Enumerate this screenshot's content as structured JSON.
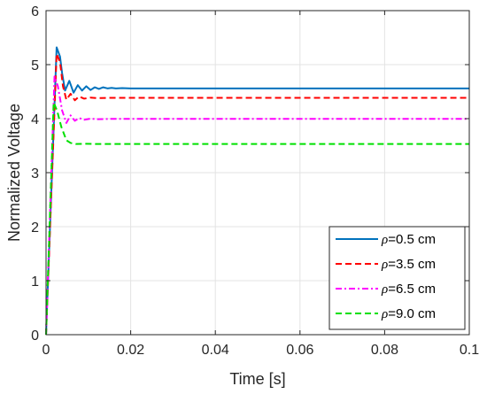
{
  "chart_data": {
    "type": "line",
    "title": "",
    "xlabel": "Time [s]",
    "ylabel": "Normalized Voltage",
    "xlim": [
      0,
      0.1
    ],
    "ylim": [
      0,
      6
    ],
    "xticks": [
      "0",
      "0.02",
      "0.04",
      "0.06",
      "0.08",
      "0.1"
    ],
    "yticks": [
      "0",
      "1",
      "2",
      "3",
      "4",
      "5",
      "6"
    ],
    "grid": true,
    "legend_position": "bottom-right",
    "series": [
      {
        "name": "ρ=0.5 cm",
        "legend_symbol": "ρ",
        "legend_rest": "=0.5 cm",
        "color": "#0072BD",
        "style": "solid",
        "x": [
          0,
          0.0025,
          0.0033,
          0.0038,
          0.0045,
          0.0055,
          0.0065,
          0.0075,
          0.0085,
          0.0095,
          0.0105,
          0.0115,
          0.0125,
          0.0135,
          0.0145,
          0.0155,
          0.0165,
          0.018,
          0.02,
          0.03,
          0.05,
          0.07,
          0.1
        ],
        "y": [
          0,
          5.32,
          5.15,
          4.84,
          4.52,
          4.7,
          4.48,
          4.62,
          4.52,
          4.6,
          4.53,
          4.58,
          4.55,
          4.58,
          4.56,
          4.57,
          4.56,
          4.565,
          4.56,
          4.56,
          4.56,
          4.56,
          4.56
        ]
      },
      {
        "name": "ρ=3.5 cm",
        "legend_symbol": "ρ",
        "legend_rest": "=3.5 cm",
        "color": "#FF0000",
        "style": "dashed",
        "x": [
          0,
          0.0025,
          0.0033,
          0.004,
          0.0048,
          0.0058,
          0.0068,
          0.0078,
          0.009,
          0.0105,
          0.012,
          0.015,
          0.03,
          0.05,
          0.1
        ],
        "y": [
          0,
          5.2,
          5.05,
          4.6,
          4.35,
          4.46,
          4.34,
          4.41,
          4.37,
          4.39,
          4.38,
          4.385,
          4.385,
          4.385,
          4.385
        ]
      },
      {
        "name": "ρ=6.5 cm",
        "legend_symbol": "ρ",
        "legend_rest": "=6.5 cm",
        "color": "#FF00FF",
        "style": "dashdot",
        "x": [
          0,
          0.002,
          0.0028,
          0.0038,
          0.0048,
          0.0058,
          0.0068,
          0.0078,
          0.009,
          0.0105,
          0.012,
          0.015,
          0.03,
          0.05,
          0.1
        ],
        "y": [
          0,
          4.78,
          4.6,
          4.15,
          3.92,
          4.06,
          3.96,
          4.01,
          3.98,
          4.0,
          3.99,
          3.995,
          3.995,
          3.995,
          3.995
        ]
      },
      {
        "name": "ρ=9.0 cm",
        "legend_symbol": "ρ",
        "legend_rest": "=9.0 cm",
        "color": "#00E000",
        "style": "dashed",
        "x": [
          0,
          0.0018,
          0.0026,
          0.0036,
          0.0048,
          0.0058,
          0.007,
          0.009,
          0.012,
          0.02,
          0.05,
          0.1
        ],
        "y": [
          0,
          4.3,
          4.15,
          3.85,
          3.6,
          3.55,
          3.53,
          3.535,
          3.53,
          3.53,
          3.53,
          3.53
        ]
      }
    ]
  }
}
